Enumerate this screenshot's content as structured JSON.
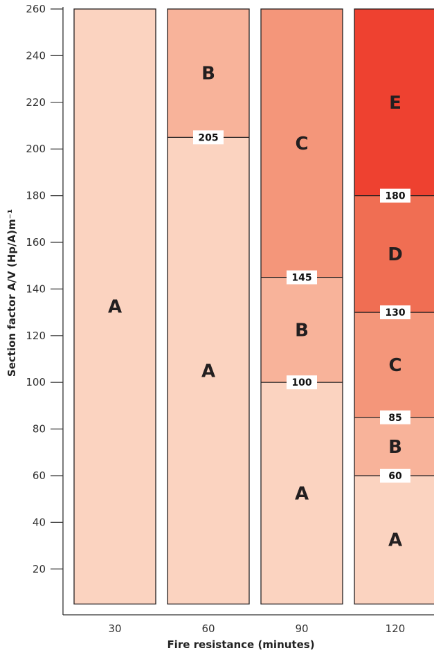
{
  "chart_data": {
    "type": "bar",
    "xlabel": "Fire resistance (minutes)",
    "ylabel": "Section factor A/V (Hp/A)m⁻¹",
    "ylim": [
      5,
      260
    ],
    "yticks": [
      20,
      40,
      60,
      80,
      100,
      120,
      140,
      160,
      180,
      200,
      220,
      240,
      260
    ],
    "categories": [
      "30",
      "60",
      "90",
      "120"
    ],
    "columns": [
      {
        "x": "30",
        "segments": [
          {
            "label": "A",
            "from": 5,
            "to": 260,
            "color": "#fbd3c0"
          }
        ],
        "boundaries": []
      },
      {
        "x": "60",
        "segments": [
          {
            "label": "A",
            "from": 5,
            "to": 205,
            "color": "#fbd3c0"
          },
          {
            "label": "B",
            "from": 205,
            "to": 260,
            "color": "#f8b39a"
          }
        ],
        "boundaries": [
          "205"
        ]
      },
      {
        "x": "90",
        "segments": [
          {
            "label": "A",
            "from": 5,
            "to": 100,
            "color": "#fbd3c0"
          },
          {
            "label": "B",
            "from": 100,
            "to": 145,
            "color": "#f8b39a"
          },
          {
            "label": "C",
            "from": 145,
            "to": 260,
            "color": "#f4967a"
          }
        ],
        "boundaries": [
          "100",
          "145"
        ]
      },
      {
        "x": "120",
        "segments": [
          {
            "label": "A",
            "from": 5,
            "to": 60,
            "color": "#fbd3c0"
          },
          {
            "label": "B",
            "from": 60,
            "to": 85,
            "color": "#f8b39a"
          },
          {
            "label": "C",
            "from": 85,
            "to": 130,
            "color": "#f4967a"
          },
          {
            "label": "D",
            "from": 130,
            "to": 180,
            "color": "#f06e53"
          },
          {
            "label": "E",
            "from": 180,
            "to": 260,
            "color": "#ee4130"
          }
        ],
        "boundaries": [
          "60",
          "85",
          "130",
          "180"
        ]
      }
    ],
    "colors": {
      "A": "#fbd3c0",
      "B": "#f8b39a",
      "C": "#f4967a",
      "D": "#f06e53",
      "E": "#ee4130"
    }
  }
}
